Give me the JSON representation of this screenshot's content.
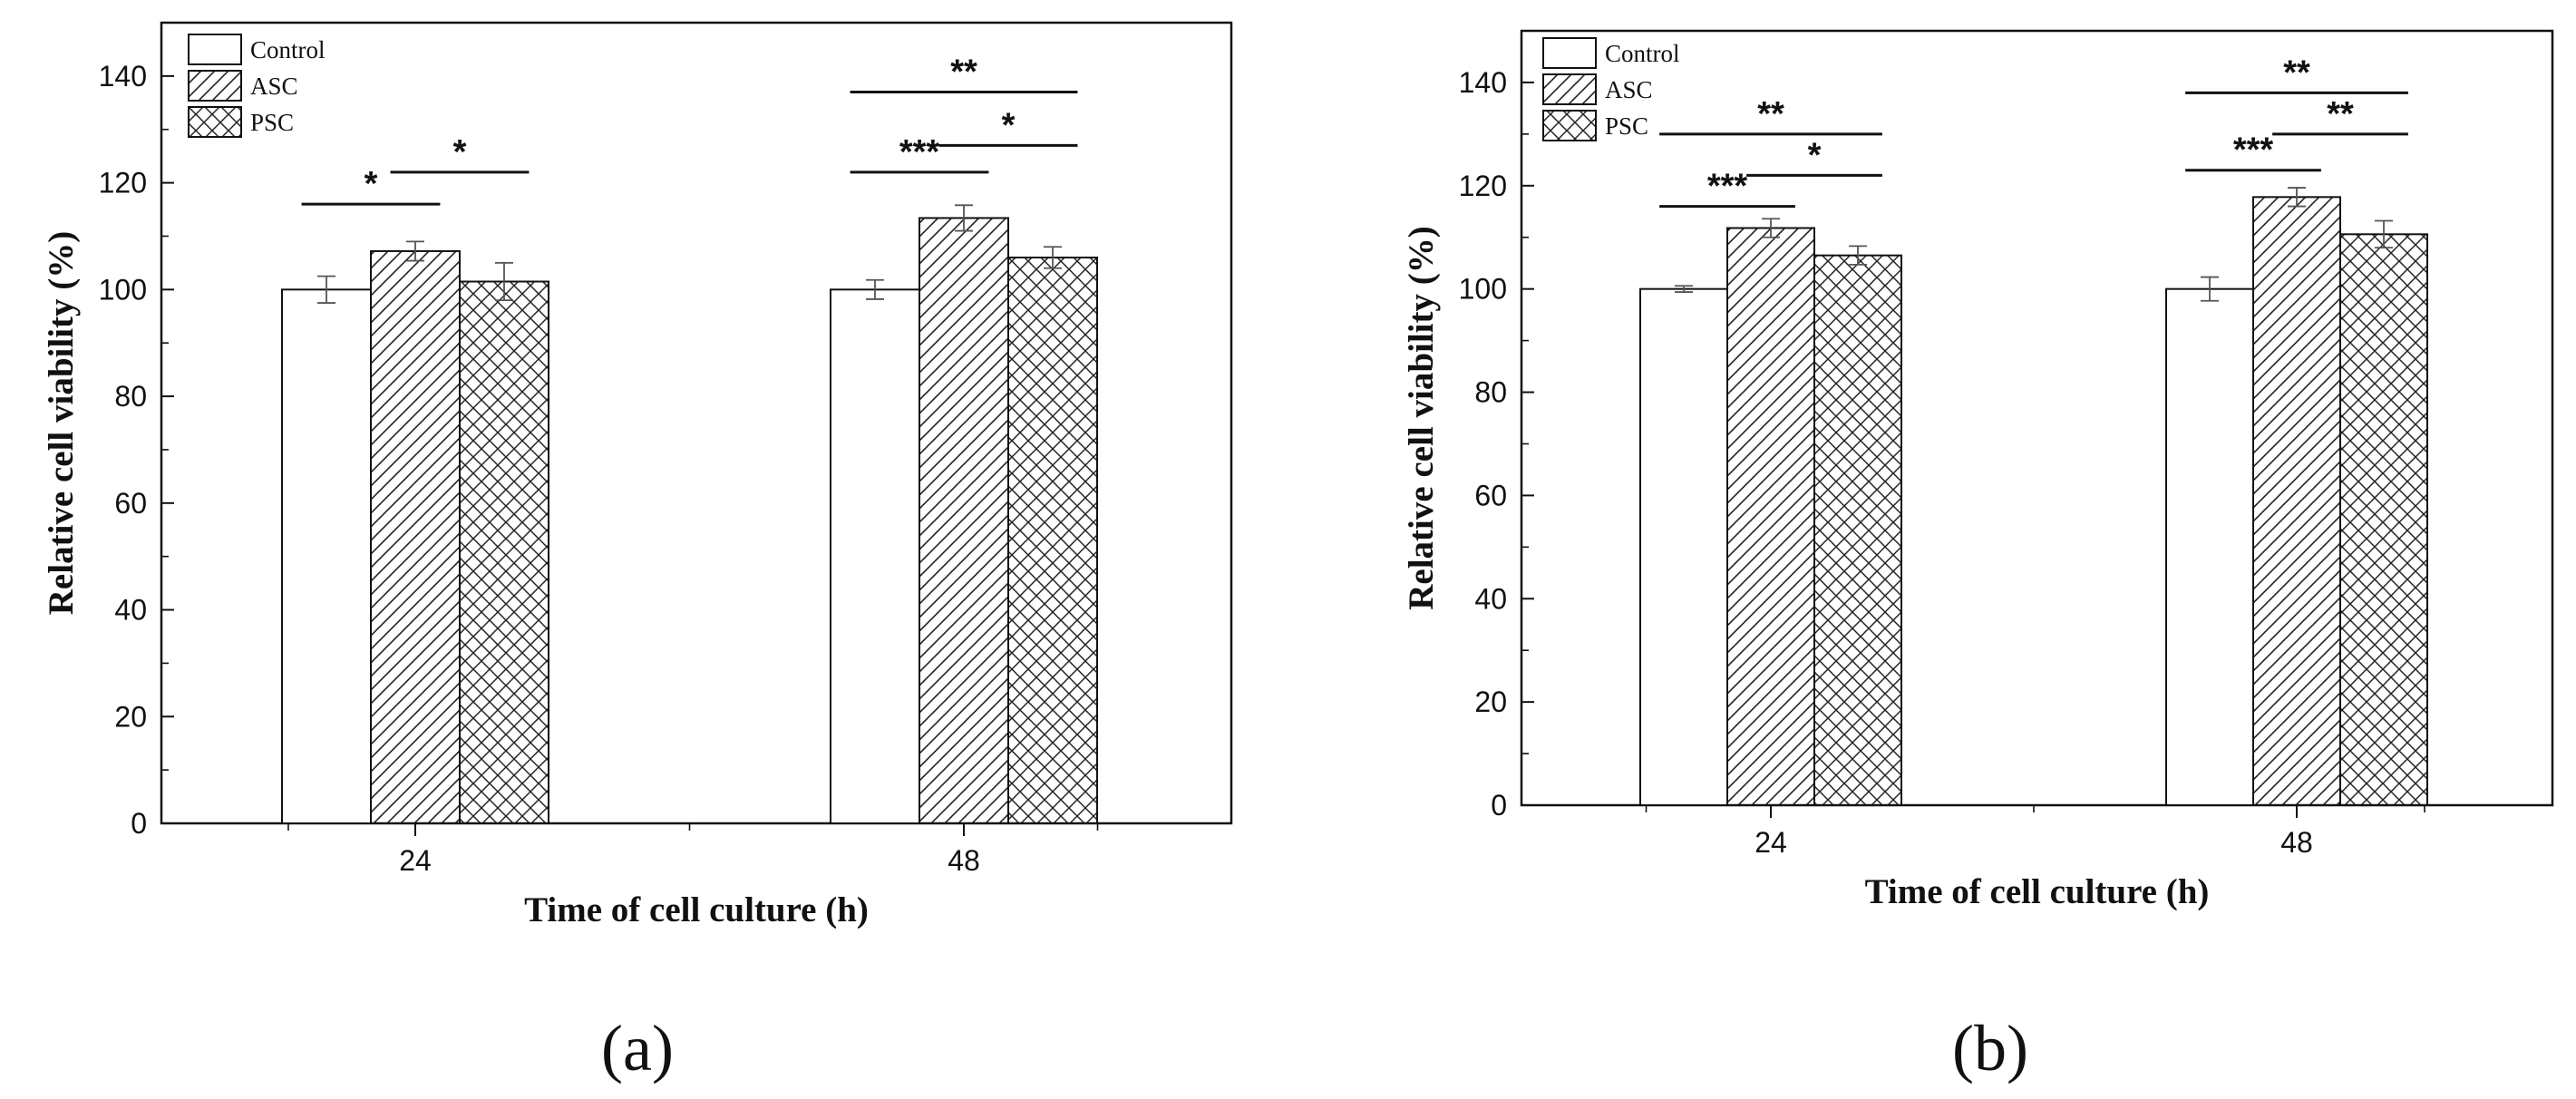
{
  "figure": {
    "panel_labels": [
      "(a)",
      "(b)"
    ]
  },
  "chart_data": [
    {
      "type": "bar",
      "panel": "(a)",
      "xlabel": "Time of cell culture (h)",
      "ylabel": "Relative cell viability (%)",
      "ylim": [
        0,
        150
      ],
      "yticks": [
        0,
        20,
        40,
        60,
        80,
        100,
        120,
        140
      ],
      "categories": [
        "24",
        "48"
      ],
      "legend": {
        "position": "top-left",
        "entries": [
          "Control",
          "ASC",
          "PSC"
        ]
      },
      "series": [
        {
          "name": "Control",
          "pattern": "none",
          "values": [
            100,
            100
          ],
          "errors": [
            2.5,
            1.8
          ]
        },
        {
          "name": "ASC",
          "pattern": "diagonal",
          "values": [
            107.2,
            113.4
          ],
          "errors": [
            1.8,
            2.4
          ]
        },
        {
          "name": "PSC",
          "pattern": "crosshatch",
          "values": [
            101.5,
            106.0
          ],
          "errors": [
            3.5,
            2.0
          ]
        }
      ],
      "significance": [
        {
          "category": "24",
          "from": "Control",
          "to": "ASC",
          "label": "*",
          "y": 116
        },
        {
          "category": "24",
          "from": "ASC",
          "to": "PSC",
          "label": "*",
          "y": 122
        },
        {
          "category": "48",
          "from": "Control",
          "to": "PSC",
          "label": "**",
          "y": 137
        },
        {
          "category": "48",
          "from": "Control",
          "to": "ASC",
          "label": "***",
          "y": 122
        },
        {
          "category": "48",
          "from": "ASC",
          "to": "PSC",
          "label": "*",
          "y": 127
        }
      ],
      "grid": false
    },
    {
      "type": "bar",
      "panel": "(b)",
      "xlabel": "Time of cell culture (h)",
      "ylabel": "Relative cell viability (%)",
      "ylim": [
        0,
        150
      ],
      "yticks": [
        0,
        20,
        40,
        60,
        80,
        100,
        120,
        140
      ],
      "categories": [
        "24",
        "48"
      ],
      "legend": {
        "position": "top-left",
        "entries": [
          "Control",
          "ASC",
          "PSC"
        ]
      },
      "series": [
        {
          "name": "Control",
          "pattern": "none",
          "values": [
            100,
            100
          ],
          "errors": [
            0.6,
            2.3
          ]
        },
        {
          "name": "ASC",
          "pattern": "diagonal",
          "values": [
            111.8,
            117.8
          ],
          "errors": [
            1.8,
            1.8
          ]
        },
        {
          "name": "PSC",
          "pattern": "crosshatch",
          "values": [
            106.5,
            110.6
          ],
          "errors": [
            1.8,
            2.6
          ]
        }
      ],
      "significance": [
        {
          "category": "24",
          "from": "Control",
          "to": "PSC",
          "label": "**",
          "y": 130
        },
        {
          "category": "24",
          "from": "Control",
          "to": "ASC",
          "label": "***",
          "y": 116
        },
        {
          "category": "24",
          "from": "ASC",
          "to": "PSC",
          "label": "*",
          "y": 122
        },
        {
          "category": "48",
          "from": "Control",
          "to": "PSC",
          "label": "**",
          "y": 138
        },
        {
          "category": "48",
          "from": "Control",
          "to": "ASC",
          "label": "***",
          "y": 123
        },
        {
          "category": "48",
          "from": "ASC",
          "to": "PSC",
          "label": "**",
          "y": 130
        }
      ],
      "grid": false
    }
  ]
}
